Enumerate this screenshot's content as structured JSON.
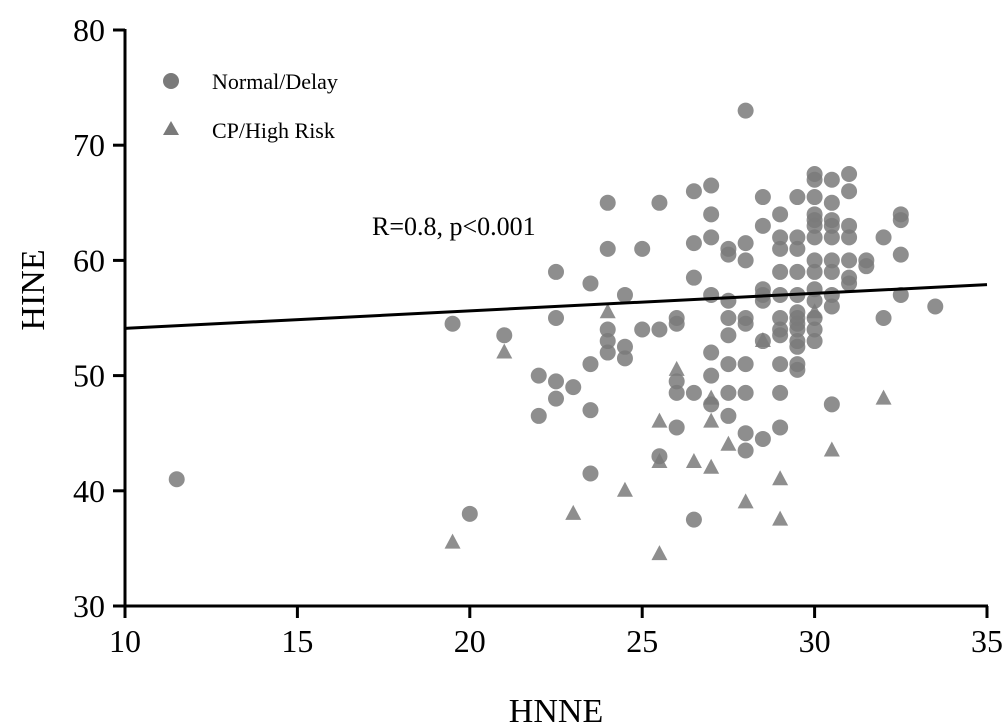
{
  "chart_data": {
    "type": "scatter",
    "title": "",
    "xlabel": "HNNE",
    "ylabel": "HINE",
    "xlim": [
      10,
      35
    ],
    "ylim": [
      30,
      80
    ],
    "xticks": [
      10,
      15,
      20,
      25,
      30,
      35
    ],
    "yticks": [
      30,
      40,
      50,
      60,
      70,
      80
    ],
    "grid": false,
    "legend_position": "top-left",
    "annotation": "R=0.8, p<0.001",
    "regression_line": {
      "x": [
        10,
        35
      ],
      "y": [
        54.1,
        57.9
      ]
    },
    "series": [
      {
        "name": "Normal/Delay",
        "marker": "circle",
        "color": "#7a7a7a",
        "points": [
          [
            11.5,
            41
          ],
          [
            19.5,
            54.5
          ],
          [
            20,
            38
          ],
          [
            21,
            53.5
          ],
          [
            22,
            50
          ],
          [
            22,
            46.5
          ],
          [
            22.5,
            59
          ],
          [
            22.5,
            55
          ],
          [
            22.5,
            49.5
          ],
          [
            22.5,
            48
          ],
          [
            23,
            49
          ],
          [
            23.5,
            58
          ],
          [
            23.5,
            51
          ],
          [
            23.5,
            47
          ],
          [
            23.5,
            41.5
          ],
          [
            24,
            65
          ],
          [
            24,
            61
          ],
          [
            24,
            54
          ],
          [
            24,
            53
          ],
          [
            24,
            52
          ],
          [
            24.5,
            57
          ],
          [
            24.5,
            52.5
          ],
          [
            24.5,
            51.5
          ],
          [
            25,
            61
          ],
          [
            25,
            54
          ],
          [
            25.5,
            65
          ],
          [
            25.5,
            54
          ],
          [
            25.5,
            43
          ],
          [
            26,
            55
          ],
          [
            26,
            54.5
          ],
          [
            26,
            49.5
          ],
          [
            26,
            48.5
          ],
          [
            26,
            45.5
          ],
          [
            26.5,
            66
          ],
          [
            26.5,
            61.5
          ],
          [
            26.5,
            58.5
          ],
          [
            26.5,
            48.5
          ],
          [
            26.5,
            37.5
          ],
          [
            27,
            66.5
          ],
          [
            27,
            64
          ],
          [
            27,
            62
          ],
          [
            27,
            57
          ],
          [
            27,
            52
          ],
          [
            27,
            50
          ],
          [
            27,
            47.5
          ],
          [
            27.5,
            61
          ],
          [
            27.5,
            60.5
          ],
          [
            27.5,
            56.5
          ],
          [
            27.5,
            55
          ],
          [
            27.5,
            53.5
          ],
          [
            27.5,
            51
          ],
          [
            27.5,
            48.5
          ],
          [
            27.5,
            46.5
          ],
          [
            28,
            73
          ],
          [
            28,
            61.5
          ],
          [
            28,
            60
          ],
          [
            28,
            55
          ],
          [
            28,
            54.5
          ],
          [
            28,
            51
          ],
          [
            28,
            48.5
          ],
          [
            28,
            45
          ],
          [
            28,
            43.5
          ],
          [
            28.5,
            65.5
          ],
          [
            28.5,
            63
          ],
          [
            28.5,
            57.5
          ],
          [
            28.5,
            57
          ],
          [
            28.5,
            56.5
          ],
          [
            28.5,
            53
          ],
          [
            28.5,
            44.5
          ],
          [
            29,
            64
          ],
          [
            29,
            62
          ],
          [
            29,
            61
          ],
          [
            29,
            59
          ],
          [
            29,
            57
          ],
          [
            29,
            55
          ],
          [
            29,
            54
          ],
          [
            29,
            53.5
          ],
          [
            29,
            51
          ],
          [
            29,
            48.5
          ],
          [
            29,
            45.5
          ],
          [
            29.5,
            65.5
          ],
          [
            29.5,
            62
          ],
          [
            29.5,
            61
          ],
          [
            29.5,
            59
          ],
          [
            29.5,
            57
          ],
          [
            29.5,
            55.5
          ],
          [
            29.5,
            55
          ],
          [
            29.5,
            54.5
          ],
          [
            29.5,
            54
          ],
          [
            29.5,
            53
          ],
          [
            29.5,
            52.5
          ],
          [
            29.5,
            51
          ],
          [
            29.5,
            50.5
          ],
          [
            30,
            67.5
          ],
          [
            30,
            67
          ],
          [
            30,
            65.5
          ],
          [
            30,
            64
          ],
          [
            30,
            63.5
          ],
          [
            30,
            63
          ],
          [
            30,
            62
          ],
          [
            30,
            60
          ],
          [
            30,
            59
          ],
          [
            30,
            57.5
          ],
          [
            30,
            56.5
          ],
          [
            30,
            55
          ],
          [
            30,
            54
          ],
          [
            30,
            53
          ],
          [
            30.5,
            67
          ],
          [
            30.5,
            65
          ],
          [
            30.5,
            63.5
          ],
          [
            30.5,
            63
          ],
          [
            30.5,
            62
          ],
          [
            30.5,
            60
          ],
          [
            30.5,
            59
          ],
          [
            30.5,
            57
          ],
          [
            30.5,
            56
          ],
          [
            30.5,
            47.5
          ],
          [
            31,
            67.5
          ],
          [
            31,
            66
          ],
          [
            31,
            63
          ],
          [
            31,
            62
          ],
          [
            31,
            60
          ],
          [
            31,
            58.5
          ],
          [
            31,
            58
          ],
          [
            31.5,
            60
          ],
          [
            31.5,
            59.5
          ],
          [
            32,
            62
          ],
          [
            32,
            55
          ],
          [
            32.5,
            64
          ],
          [
            32.5,
            63.5
          ],
          [
            32.5,
            60.5
          ],
          [
            32.5,
            57
          ],
          [
            33.5,
            56
          ]
        ]
      },
      {
        "name": "CP/High Risk",
        "marker": "triangle",
        "color": "#7a7a7a",
        "points": [
          [
            19.5,
            35.5
          ],
          [
            21,
            52
          ],
          [
            23,
            38
          ],
          [
            24,
            55.5
          ],
          [
            24.5,
            40
          ],
          [
            25.5,
            46
          ],
          [
            25.5,
            42.5
          ],
          [
            25.5,
            34.5
          ],
          [
            26,
            50.5
          ],
          [
            26.5,
            42.5
          ],
          [
            27,
            48
          ],
          [
            27,
            46
          ],
          [
            27,
            42
          ],
          [
            27.5,
            44
          ],
          [
            28,
            39
          ],
          [
            28.5,
            53
          ],
          [
            29,
            41
          ],
          [
            29,
            37.5
          ],
          [
            30,
            55.5
          ],
          [
            30.5,
            43.5
          ],
          [
            32,
            48
          ]
        ]
      }
    ]
  }
}
